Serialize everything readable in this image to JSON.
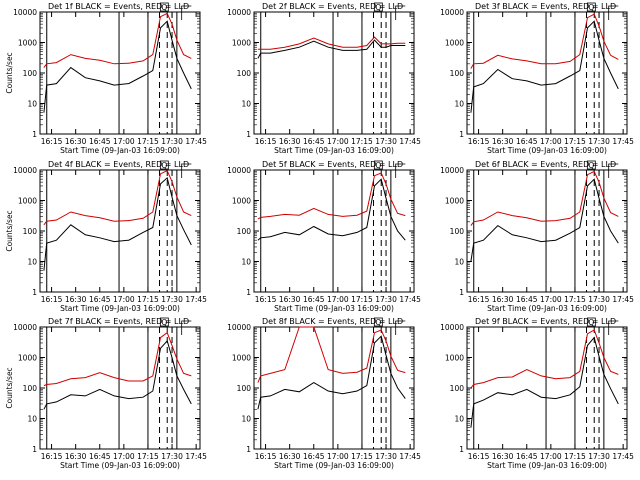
{
  "chart_data": [
    {
      "type": "line",
      "title": "Det 1f BLACK = Events, RED = LLD",
      "marker": "Q",
      "xlabel": "Start Time (09-Jan-03 16:09:00)",
      "ylabel": "Counts/sec",
      "xticks": [
        "16:15",
        "16:30",
        "16:45",
        "17:00",
        "17:15",
        "17:30",
        "17:45"
      ],
      "yticks": [
        "1",
        "10",
        "100",
        "1000",
        "10000"
      ],
      "ylim": [
        1,
        10000
      ],
      "yscale": "log",
      "series": [
        {
          "color": "#000000",
          "x": [
            16.17,
            16.2,
            16.3,
            16.45,
            16.6,
            16.75,
            16.9,
            17.05,
            17.2,
            17.3,
            17.38,
            17.45,
            17.5,
            17.55,
            17.62,
            17.7
          ],
          "y": [
            5,
            40,
            45,
            150,
            70,
            55,
            40,
            45,
            80,
            120,
            3000,
            5000,
            1200,
            300,
            100,
            30
          ]
        },
        {
          "color": "#d00000",
          "x": [
            16.17,
            16.2,
            16.3,
            16.45,
            16.6,
            16.75,
            16.9,
            17.05,
            17.2,
            17.3,
            17.38,
            17.45,
            17.5,
            17.55,
            17.62,
            17.7
          ],
          "y": [
            150,
            200,
            220,
            400,
            300,
            260,
            200,
            210,
            250,
            400,
            7000,
            9000,
            4000,
            1200,
            400,
            300
          ]
        }
      ],
      "vlines_solid": [
        16.2,
        16.95,
        17.25,
        17.55
      ],
      "vlines_dashed": [
        17.37,
        17.45,
        17.5
      ]
    },
    {
      "type": "line",
      "title": "Det 2f BLACK = Events, RED = LLD",
      "marker": "Q",
      "xlabel": "Start Time (09-Jan-03 16:09:00)",
      "ylabel": "",
      "xticks": [
        "16:15",
        "16:30",
        "16:45",
        "17:00",
        "17:15",
        "17:30",
        "17:45"
      ],
      "yticks": [
        "1",
        "10",
        "100",
        "1000",
        "10000"
      ],
      "ylim": [
        1,
        10000
      ],
      "yscale": "log",
      "series": [
        {
          "color": "#000000",
          "x": [
            16.17,
            16.2,
            16.3,
            16.45,
            16.6,
            16.75,
            16.9,
            17.05,
            17.2,
            17.3,
            17.38,
            17.45,
            17.5,
            17.55,
            17.62,
            17.7
          ],
          "y": [
            300,
            450,
            450,
            550,
            700,
            1100,
            700,
            550,
            550,
            600,
            1200,
            700,
            700,
            800,
            800,
            800
          ]
        },
        {
          "color": "#d00000",
          "x": [
            16.17,
            16.2,
            16.3,
            16.45,
            16.6,
            16.75,
            16.9,
            17.05,
            17.2,
            17.3,
            17.38,
            17.45,
            17.5,
            17.55,
            17.62,
            17.7
          ],
          "y": [
            600,
            600,
            600,
            700,
            900,
            1400,
            900,
            700,
            700,
            800,
            1500,
            900,
            900,
            900,
            950,
            950
          ]
        }
      ],
      "vlines_solid": [
        16.2,
        16.95,
        17.25,
        17.55
      ],
      "vlines_dashed": [
        17.37,
        17.45,
        17.5
      ]
    },
    {
      "type": "line",
      "title": "Det 3f BLACK = Events, RED = LLD",
      "marker": "Q",
      "xlabel": "Start Time (09-Jan-03 16:09:00)",
      "ylabel": "",
      "xticks": [
        "16:15",
        "16:30",
        "16:45",
        "17:00",
        "17:15",
        "17:30",
        "17:45"
      ],
      "yticks": [
        "1",
        "10",
        "100",
        "1000",
        "10000"
      ],
      "ylim": [
        1,
        10000
      ],
      "yscale": "log",
      "series": [
        {
          "color": "#000000",
          "x": [
            16.17,
            16.2,
            16.3,
            16.45,
            16.6,
            16.75,
            16.9,
            17.05,
            17.2,
            17.3,
            17.38,
            17.45,
            17.5,
            17.55,
            17.62,
            17.7
          ],
          "y": [
            5,
            35,
            45,
            130,
            65,
            55,
            40,
            45,
            80,
            120,
            3000,
            5000,
            1200,
            300,
            100,
            30
          ]
        },
        {
          "color": "#d00000",
          "x": [
            16.17,
            16.2,
            16.3,
            16.45,
            16.6,
            16.75,
            16.9,
            17.05,
            17.2,
            17.3,
            17.38,
            17.45,
            17.5,
            17.55,
            17.62,
            17.7
          ],
          "y": [
            140,
            200,
            210,
            380,
            290,
            250,
            200,
            200,
            240,
            400,
            6500,
            8500,
            3500,
            1100,
            380,
            280
          ]
        }
      ],
      "vlines_solid": [
        16.2,
        16.95,
        17.25,
        17.55
      ],
      "vlines_dashed": [
        17.37,
        17.45,
        17.5
      ]
    },
    {
      "type": "line",
      "title": "Det 4f BLACK = Events, RED = LLD",
      "marker": "Q",
      "xlabel": "Start Time (09-Jan-03 16:09:00)",
      "ylabel": "Counts/sec",
      "xticks": [
        "16:15",
        "16:30",
        "16:45",
        "17:00",
        "17:15",
        "17:30",
        "17:45"
      ],
      "yticks": [
        "1",
        "10",
        "100",
        "1000",
        "10000"
      ],
      "ylim": [
        1,
        10000
      ],
      "yscale": "log",
      "series": [
        {
          "color": "#000000",
          "x": [
            16.17,
            16.2,
            16.3,
            16.45,
            16.6,
            16.75,
            16.9,
            17.05,
            17.2,
            17.3,
            17.38,
            17.45,
            17.5,
            17.55,
            17.62,
            17.7
          ],
          "y": [
            5,
            40,
            50,
            160,
            75,
            60,
            45,
            50,
            90,
            130,
            3500,
            5500,
            1300,
            320,
            110,
            35
          ]
        },
        {
          "color": "#d00000",
          "x": [
            16.17,
            16.2,
            16.3,
            16.45,
            16.6,
            16.75,
            16.9,
            17.05,
            17.2,
            17.3,
            17.38,
            17.45,
            17.5,
            17.55,
            17.62,
            17.7
          ],
          "y": [
            160,
            210,
            230,
            420,
            320,
            270,
            210,
            220,
            260,
            420,
            7500,
            9500,
            4200,
            1300,
            420,
            320
          ]
        }
      ],
      "vlines_solid": [
        16.2,
        16.95,
        17.25,
        17.55
      ],
      "vlines_dashed": [
        17.37,
        17.45,
        17.5
      ]
    },
    {
      "type": "line",
      "title": "Det 5f BLACK = Events, RED = LLD",
      "marker": "Q",
      "xlabel": "Start Time (09-Jan-03 16:09:00)",
      "ylabel": "",
      "xticks": [
        "16:15",
        "16:30",
        "16:45",
        "17:00",
        "17:15",
        "17:30",
        "17:45"
      ],
      "yticks": [
        "1",
        "10",
        "100",
        "1000",
        "10000"
      ],
      "ylim": [
        1,
        10000
      ],
      "yscale": "log",
      "series": [
        {
          "color": "#000000",
          "x": [
            16.17,
            16.2,
            16.3,
            16.45,
            16.6,
            16.75,
            16.9,
            17.05,
            17.2,
            17.3,
            17.38,
            17.45,
            17.5,
            17.55,
            17.62,
            17.7
          ],
          "y": [
            50,
            60,
            65,
            90,
            75,
            140,
            80,
            70,
            90,
            130,
            3000,
            5000,
            1200,
            300,
            100,
            50
          ]
        },
        {
          "color": "#d00000",
          "x": [
            16.17,
            16.2,
            16.3,
            16.45,
            16.6,
            16.75,
            16.9,
            17.05,
            17.2,
            17.3,
            17.38,
            17.45,
            17.5,
            17.55,
            17.62,
            17.7
          ],
          "y": [
            250,
            280,
            300,
            350,
            330,
            550,
            350,
            300,
            330,
            450,
            6500,
            8000,
            3500,
            1100,
            380,
            320
          ]
        }
      ],
      "vlines_solid": [
        16.2,
        16.95,
        17.25,
        17.55
      ],
      "vlines_dashed": [
        17.37,
        17.45,
        17.5
      ]
    },
    {
      "type": "line",
      "title": "Det 6f BLACK = Events, RED = LLD",
      "marker": "Q",
      "xlabel": "Start Time (09-Jan-03 16:09:00)",
      "ylabel": "",
      "xticks": [
        "16:15",
        "16:30",
        "16:45",
        "17:00",
        "17:15",
        "17:30",
        "17:45"
      ],
      "yticks": [
        "1",
        "10",
        "100",
        "1000",
        "10000"
      ],
      "ylim": [
        1,
        10000
      ],
      "yscale": "log",
      "series": [
        {
          "color": "#000000",
          "x": [
            16.17,
            16.2,
            16.3,
            16.45,
            16.6,
            16.75,
            16.9,
            17.05,
            17.2,
            17.3,
            17.38,
            17.45,
            17.5,
            17.55,
            17.62,
            17.7
          ],
          "y": [
            10,
            40,
            50,
            150,
            75,
            60,
            45,
            50,
            85,
            130,
            3000,
            5000,
            1200,
            300,
            100,
            40
          ]
        },
        {
          "color": "#d00000",
          "x": [
            16.17,
            16.2,
            16.3,
            16.45,
            16.6,
            16.75,
            16.9,
            17.05,
            17.2,
            17.3,
            17.38,
            17.45,
            17.5,
            17.55,
            17.62,
            17.7
          ],
          "y": [
            150,
            200,
            230,
            420,
            320,
            270,
            210,
            220,
            260,
            420,
            7000,
            9000,
            4000,
            1200,
            400,
            300
          ]
        }
      ],
      "vlines_solid": [
        16.2,
        16.95,
        17.25,
        17.55
      ],
      "vlines_dashed": [
        17.37,
        17.45,
        17.5
      ]
    },
    {
      "type": "line",
      "title": "Det 7f BLACK = Events, RED = LLD",
      "marker": "Q",
      "xlabel": "Start Time (09-Jan-03 16:09:00)",
      "ylabel": "Counts/sec",
      "xticks": [
        "16:15",
        "16:30",
        "16:45",
        "17:00",
        "17:15",
        "17:30",
        "17:45"
      ],
      "yticks": [
        "1",
        "10",
        "100",
        "1000",
        "10000"
      ],
      "ylim": [
        1,
        10000
      ],
      "yscale": "log",
      "series": [
        {
          "color": "#000000",
          "x": [
            16.17,
            16.2,
            16.3,
            16.45,
            16.6,
            16.75,
            16.9,
            17.05,
            17.2,
            17.3,
            17.38,
            17.45,
            17.5,
            17.55,
            17.62,
            17.7
          ],
          "y": [
            20,
            30,
            35,
            60,
            55,
            90,
            55,
            45,
            50,
            80,
            2000,
            3500,
            1000,
            250,
            90,
            30
          ]
        },
        {
          "color": "#d00000",
          "x": [
            16.17,
            16.2,
            16.3,
            16.45,
            16.6,
            16.75,
            16.9,
            17.05,
            17.2,
            17.3,
            17.38,
            17.45,
            17.5,
            17.55,
            17.62,
            17.7
          ],
          "y": [
            120,
            130,
            140,
            200,
            220,
            320,
            220,
            170,
            170,
            250,
            4500,
            6500,
            2500,
            900,
            300,
            250
          ]
        }
      ],
      "vlines_solid": [
        16.2,
        16.95,
        17.25,
        17.55
      ],
      "vlines_dashed": [
        17.37,
        17.45,
        17.5
      ]
    },
    {
      "type": "line",
      "title": "Det 8f BLACK = Events, RED = LLD",
      "marker": "Q",
      "xlabel": "Start Time (09-Jan-03 16:09:00)",
      "ylabel": "",
      "xticks": [
        "16:15",
        "16:30",
        "16:45",
        "17:00",
        "17:15",
        "17:30",
        "17:45"
      ],
      "yticks": [
        "1",
        "10",
        "100",
        "1000",
        "10000"
      ],
      "ylim": [
        1,
        10000
      ],
      "yscale": "log",
      "series": [
        {
          "color": "#000000",
          "x": [
            16.17,
            16.2,
            16.3,
            16.45,
            16.6,
            16.75,
            16.9,
            17.05,
            17.2,
            17.3,
            17.38,
            17.45,
            17.5,
            17.55,
            17.62,
            17.7
          ],
          "y": [
            20,
            50,
            55,
            90,
            75,
            150,
            80,
            65,
            80,
            120,
            3000,
            5000,
            1200,
            300,
            100,
            45
          ]
        },
        {
          "color": "#d00000",
          "x": [
            16.17,
            16.2,
            16.3,
            16.45,
            16.6,
            16.75,
            16.9,
            17.05,
            17.2,
            17.3,
            17.38,
            17.45,
            17.5,
            17.55,
            17.62,
            17.7
          ],
          "y": [
            150,
            250,
            300,
            400,
            10000,
            10000,
            400,
            300,
            330,
            450,
            6500,
            8000,
            3500,
            1100,
            380,
            320
          ]
        }
      ],
      "vlines_solid": [
        16.2,
        16.95,
        17.25,
        17.55
      ],
      "vlines_dashed": [
        17.37,
        17.45,
        17.5
      ]
    },
    {
      "type": "line",
      "title": "Det 9f BLACK = Events, RED = LLD",
      "marker": "Q",
      "xlabel": "Start Time (09-Jan-03 16:09:00)",
      "ylabel": "",
      "xticks": [
        "16:15",
        "16:30",
        "16:45",
        "17:00",
        "17:15",
        "17:30",
        "17:45"
      ],
      "yticks": [
        "1",
        "10",
        "100",
        "1000",
        "10000"
      ],
      "ylim": [
        1,
        10000
      ],
      "yscale": "log",
      "series": [
        {
          "color": "#000000",
          "x": [
            16.17,
            16.2,
            16.3,
            16.45,
            16.6,
            16.75,
            16.9,
            17.05,
            17.2,
            17.3,
            17.38,
            17.45,
            17.5,
            17.55,
            17.62,
            17.7
          ],
          "y": [
            5,
            30,
            40,
            70,
            60,
            90,
            50,
            45,
            60,
            110,
            2500,
            4500,
            1100,
            280,
            95,
            30
          ]
        },
        {
          "color": "#d00000",
          "x": [
            16.17,
            16.2,
            16.3,
            16.45,
            16.6,
            16.75,
            16.9,
            17.05,
            17.2,
            17.3,
            17.38,
            17.45,
            17.5,
            17.55,
            17.62,
            17.7
          ],
          "y": [
            100,
            130,
            150,
            220,
            230,
            400,
            250,
            200,
            220,
            350,
            6000,
            8000,
            3000,
            1000,
            350,
            280
          ]
        }
      ],
      "vlines_solid": [
        16.2,
        16.95,
        17.25,
        17.55
      ],
      "vlines_dashed": [
        17.37,
        17.45,
        17.5
      ]
    }
  ]
}
